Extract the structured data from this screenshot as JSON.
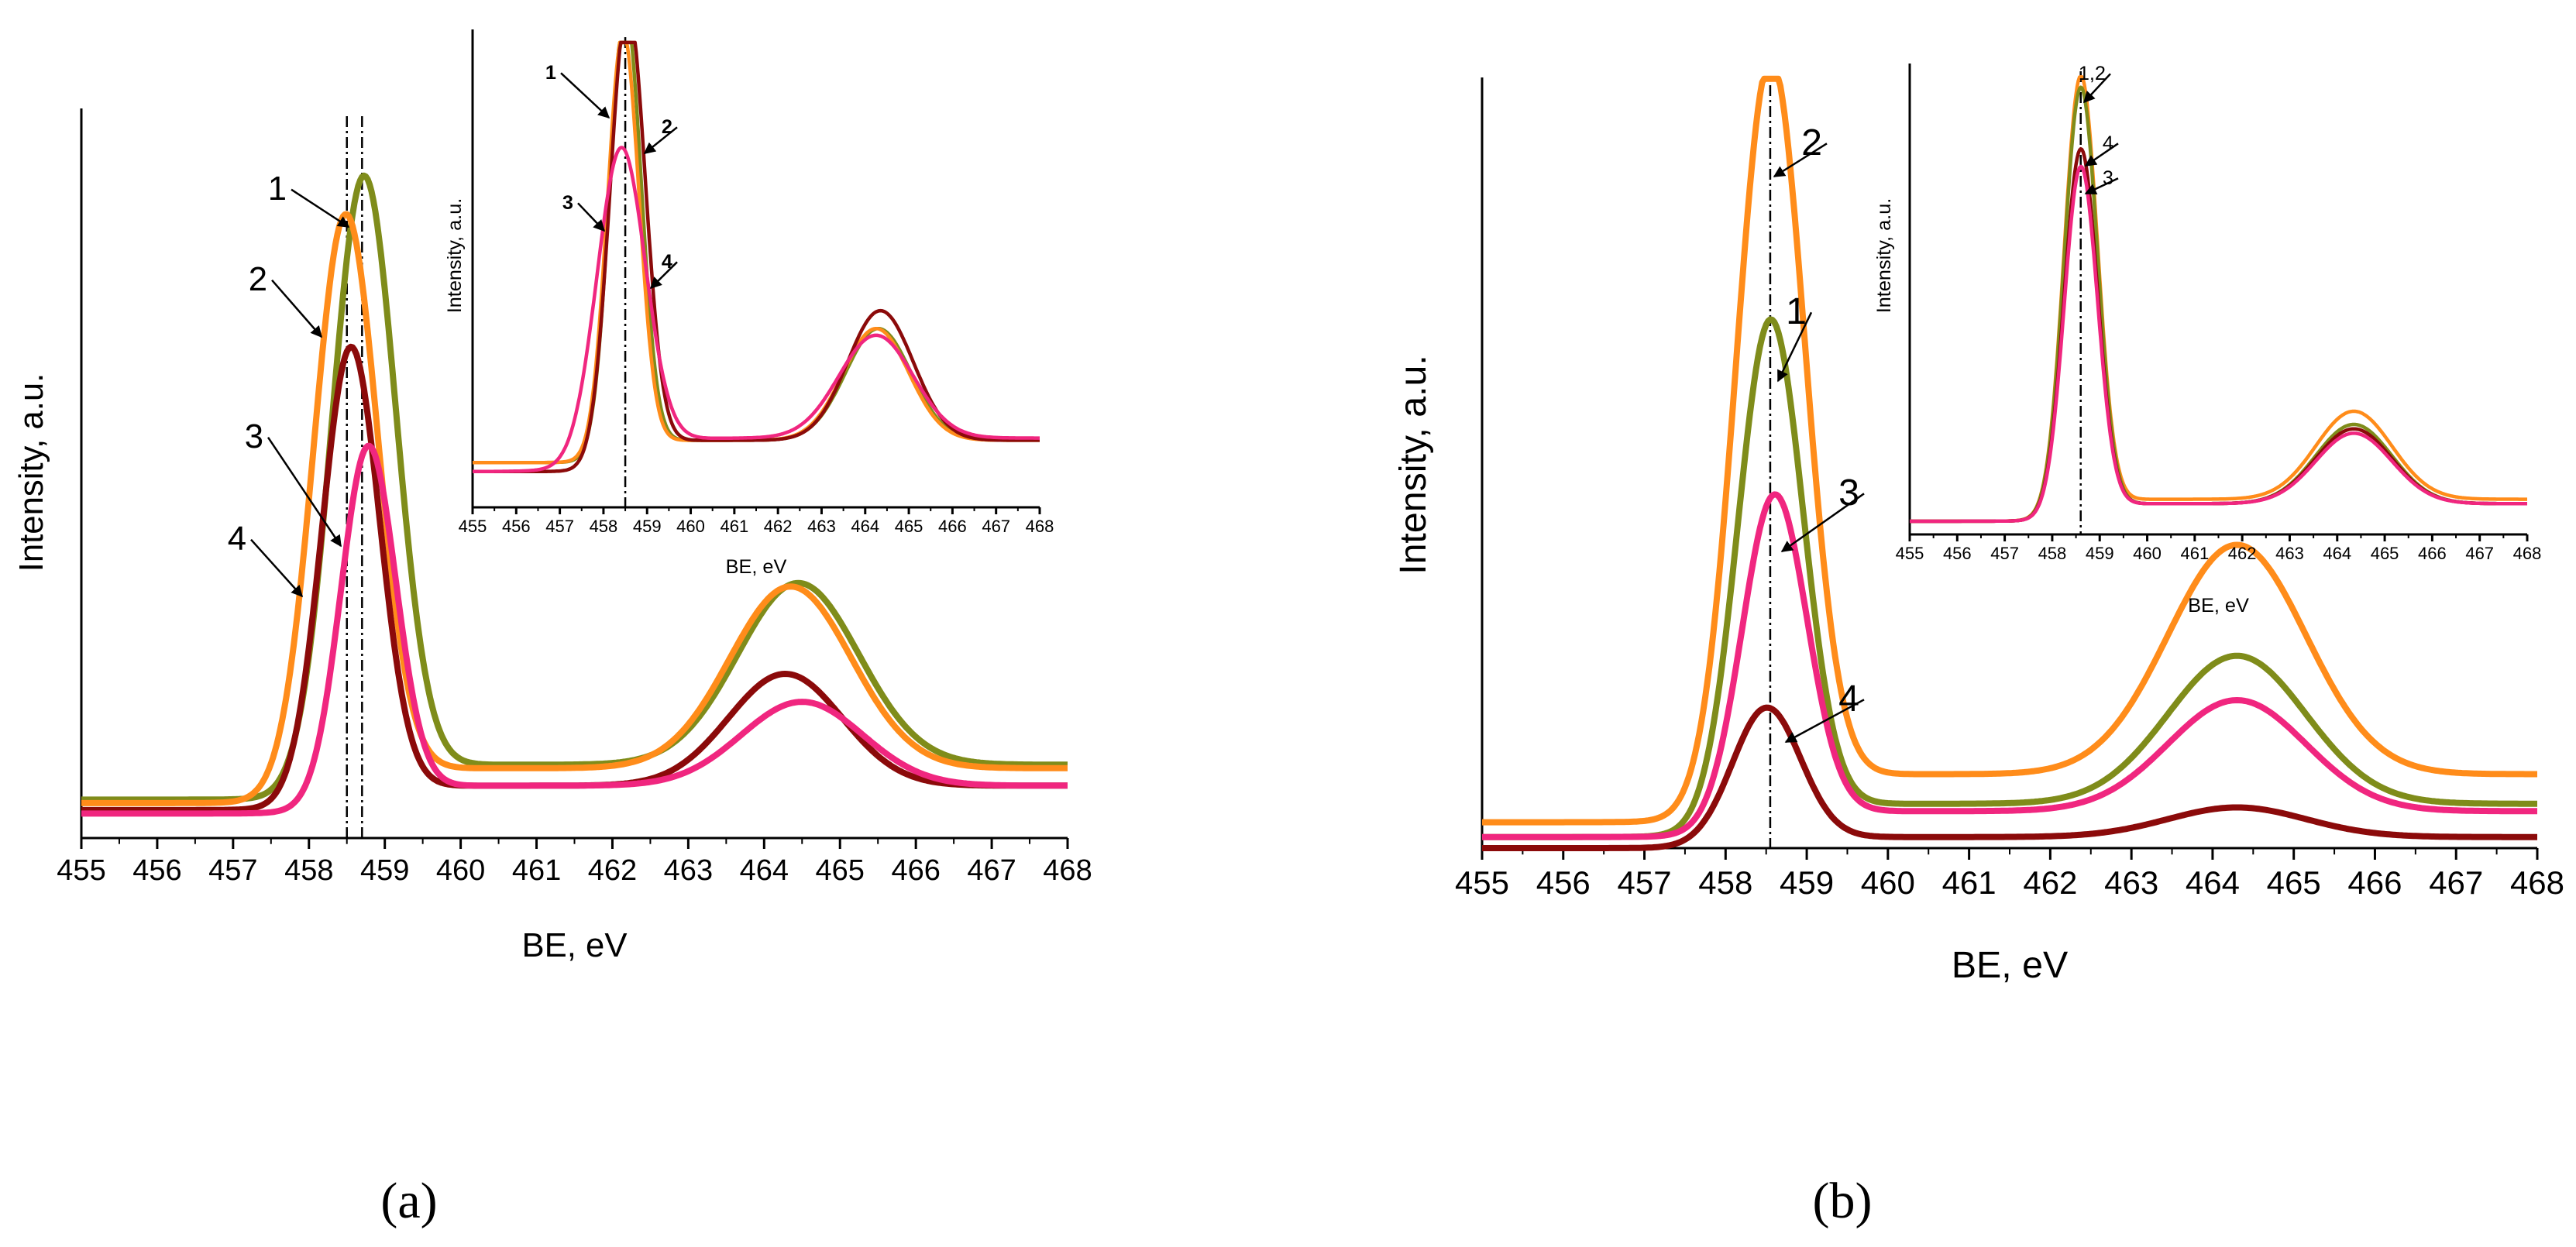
{
  "figure": {
    "panels": [
      {
        "label": "(a)",
        "main": {
          "type": "line",
          "xlabel": "BE, eV",
          "ylabel": "Intensity, a.u.",
          "xlim": [
            455,
            468
          ],
          "ylim": [
            0,
            1
          ],
          "ticks": [
            "455",
            "456",
            "457",
            "458",
            "459",
            "460",
            "461",
            "462",
            "463",
            "464",
            "465",
            "466",
            "467",
            "468"
          ],
          "reference_lines": [
            458.5,
            458.7
          ],
          "series": [
            {
              "name": "1",
              "color": "#7f8c1a",
              "peak": 458.72,
              "height": 0.86,
              "w1": 0.42,
              "peak2": 464.45,
              "h2": 0.26,
              "w2": 0.8,
              "baseA": 0.055,
              "baseB": 0.105,
              "step": 0.3,
              "label_text": "1"
            },
            {
              "name": "2",
              "color": "#ff8c1a",
              "peak": 458.48,
              "height": 0.81,
              "w1": 0.42,
              "peak2": 464.35,
              "h2": 0.26,
              "w2": 0.8,
              "baseA": 0.05,
              "baseB": 0.1,
              "step": 0.3,
              "label_text": "2"
            },
            {
              "name": "3",
              "color": "#8b0a0a",
              "peak": 458.55,
              "height": 0.64,
              "w1": 0.38,
              "peak2": 464.28,
              "h2": 0.16,
              "w2": 0.75,
              "baseA": 0.04,
              "baseB": 0.075,
              "step": 0.3,
              "label_text": "3"
            },
            {
              "name": "4",
              "color": "#f0267f",
              "peak": 458.78,
              "height": 0.5,
              "w1": 0.36,
              "peak2": 464.5,
              "h2": 0.12,
              "w2": 0.8,
              "baseA": 0.035,
              "baseB": 0.075,
              "step": 0.3,
              "label_text": "4"
            }
          ]
        },
        "inset": {
          "type": "line",
          "xlabel": "BE, eV",
          "ylabel": "Intensity, a.u.",
          "xlim": [
            455,
            468
          ],
          "ylim": [
            0,
            1
          ],
          "ticks": [
            "455",
            "456",
            "457",
            "458",
            "459",
            "460",
            "461",
            "462",
            "463",
            "464",
            "465",
            "466",
            "467",
            "468"
          ],
          "reference_lines": [
            458.5
          ],
          "series": [
            {
              "name": "1",
              "color": "#7f8c1a",
              "peak": 458.5,
              "height": 0.98,
              "w1": 0.36,
              "peak2": 464.3,
              "h2": 0.25,
              "w2": 0.75,
              "baseA": 0.1,
              "baseB": 0.15,
              "step": 0.3,
              "label_text": "1"
            },
            {
              "name": "2",
              "color": "#ff8c1a",
              "peak": 458.45,
              "height": 0.93,
              "w1": 0.36,
              "peak2": 464.25,
              "h2": 0.25,
              "w2": 0.75,
              "baseA": 0.1,
              "baseB": 0.15,
              "step": 0.3,
              "label_text": "2"
            },
            {
              "name": "3",
              "color": "#8b0a0a",
              "peak": 458.55,
              "height": 1.0,
              "w1": 0.4,
              "peak2": 464.35,
              "h2": 0.29,
              "w2": 0.75,
              "baseA": 0.08,
              "baseB": 0.15,
              "step": 0.3,
              "label_text": "3"
            },
            {
              "name": "4",
              "color": "#f0267f",
              "peak": 458.4,
              "height": 0.68,
              "w1": 0.55,
              "peak2": 464.25,
              "h2": 0.23,
              "w2": 0.85,
              "baseA": 0.08,
              "baseB": 0.155,
              "step": 0.5,
              "label_text": "4"
            }
          ]
        }
      },
      {
        "label": "(b)",
        "main": {
          "type": "line",
          "xlabel": "BE, eV",
          "ylabel": "Intensity, a.u.",
          "xlim": [
            455,
            468
          ],
          "ylim": [
            0,
            1
          ],
          "ticks": [
            "455",
            "456",
            "457",
            "458",
            "459",
            "460",
            "461",
            "462",
            "463",
            "464",
            "465",
            "466",
            "467",
            "468"
          ],
          "reference_lines": [
            458.55
          ],
          "series": [
            {
              "name": "2",
              "color": "#ff8c1a",
              "peak": 458.55,
              "height": 0.99,
              "w1": 0.42,
              "peak2": 464.3,
              "h2": 0.31,
              "w2": 0.85,
              "baseA": 0.035,
              "baseB": 0.1,
              "step": 0.3,
              "label_text": "2"
            },
            {
              "name": "1",
              "color": "#7f8c1a",
              "peak": 458.55,
              "height": 0.67,
              "w1": 0.4,
              "peak2": 464.3,
              "h2": 0.2,
              "w2": 0.85,
              "baseA": 0.015,
              "baseB": 0.06,
              "step": 0.3,
              "label_text": "1"
            },
            {
              "name": "3",
              "color": "#f0267f",
              "peak": 458.6,
              "height": 0.44,
              "w1": 0.4,
              "peak2": 464.3,
              "h2": 0.15,
              "w2": 0.85,
              "baseA": 0.015,
              "baseB": 0.05,
              "step": 0.3,
              "label_text": "3"
            },
            {
              "name": "4",
              "color": "#8b0a0a",
              "peak": 458.5,
              "height": 0.18,
              "w1": 0.42,
              "peak2": 464.3,
              "h2": 0.04,
              "w2": 0.85,
              "baseA": 0.0,
              "baseB": 0.015,
              "step": 0.3,
              "label_text": "4"
            }
          ]
        },
        "inset": {
          "type": "line",
          "xlabel": "BE, eV",
          "ylabel": "Intensity, a.u.",
          "xlim": [
            455,
            468
          ],
          "ylim": [
            0,
            1
          ],
          "ticks": [
            "455",
            "456",
            "457",
            "458",
            "459",
            "460",
            "461",
            "462",
            "463",
            "464",
            "465",
            "466",
            "467",
            "468"
          ],
          "reference_lines": [
            458.6
          ],
          "series": [
            {
              "name": "1,2",
              "color": "#ff8c1a",
              "peak": 458.6,
              "height": 0.98,
              "w1": 0.35,
              "peak2": 464.35,
              "h2": 0.2,
              "w2": 0.8,
              "baseA": 0.03,
              "baseB": 0.08,
              "step": 0.3,
              "label_text": "1,2"
            },
            {
              "name": "1",
              "color": "#7f8c1a",
              "peak": 458.6,
              "height": 0.96,
              "w1": 0.35,
              "peak2": 464.35,
              "h2": 0.18,
              "w2": 0.8,
              "baseA": 0.03,
              "baseB": 0.07,
              "step": 0.3,
              "label_text": ""
            },
            {
              "name": "4",
              "color": "#8b0a0a",
              "peak": 458.6,
              "height": 0.82,
              "w1": 0.35,
              "peak2": 464.35,
              "h2": 0.17,
              "w2": 0.8,
              "baseA": 0.03,
              "baseB": 0.07,
              "step": 0.3,
              "label_text": "4"
            },
            {
              "name": "3",
              "color": "#f0267f",
              "peak": 458.6,
              "height": 0.78,
              "w1": 0.35,
              "peak2": 464.35,
              "h2": 0.16,
              "w2": 0.8,
              "baseA": 0.03,
              "baseB": 0.07,
              "step": 0.3,
              "label_text": "3"
            }
          ]
        }
      }
    ]
  },
  "chart_data": [
    {
      "type": "line",
      "title": "(a)",
      "xlabel": "BE, eV",
      "ylabel": "Intensity, a.u.",
      "xlim": [
        455,
        468
      ],
      "legend": "curve numbers annotated with arrows",
      "series": [
        {
          "name": "1",
          "peak_BE": 458.72,
          "rel_height": 0.86,
          "second_peak_BE": 464.45
        },
        {
          "name": "2",
          "peak_BE": 458.48,
          "rel_height": 0.81,
          "second_peak_BE": 464.35
        },
        {
          "name": "3",
          "peak_BE": 458.55,
          "rel_height": 0.64,
          "second_peak_BE": 464.28
        },
        {
          "name": "4",
          "peak_BE": 458.78,
          "rel_height": 0.5,
          "second_peak_BE": 464.5
        }
      ]
    },
    {
      "type": "line",
      "title": "(a) inset",
      "xlabel": "BE, eV",
      "ylabel": "Intensity, a.u.",
      "xlim": [
        455,
        468
      ],
      "series": [
        {
          "name": "1",
          "peak_BE": 458.5,
          "rel_height": 0.98
        },
        {
          "name": "2",
          "peak_BE": 458.45,
          "rel_height": 0.93
        },
        {
          "name": "3",
          "peak_BE": 458.55,
          "rel_height": 1.0
        },
        {
          "name": "4",
          "peak_BE": 458.4,
          "rel_height": 0.68
        }
      ]
    },
    {
      "type": "line",
      "title": "(b)",
      "xlabel": "BE, eV",
      "ylabel": "Intensity, a.u.",
      "xlim": [
        455,
        468
      ],
      "series": [
        {
          "name": "2",
          "peak_BE": 458.55,
          "rel_height": 0.99,
          "second_peak_BE": 464.3
        },
        {
          "name": "1",
          "peak_BE": 458.55,
          "rel_height": 0.67,
          "second_peak_BE": 464.3
        },
        {
          "name": "3",
          "peak_BE": 458.6,
          "rel_height": 0.44,
          "second_peak_BE": 464.3
        },
        {
          "name": "4",
          "peak_BE": 458.5,
          "rel_height": 0.18,
          "second_peak_BE": 464.3
        }
      ]
    },
    {
      "type": "line",
      "title": "(b) inset",
      "xlabel": "BE, eV",
      "ylabel": "Intensity, a.u.",
      "xlim": [
        455,
        468
      ],
      "series": [
        {
          "name": "1,2",
          "peak_BE": 458.6,
          "rel_height": 0.98
        },
        {
          "name": "4",
          "peak_BE": 458.6,
          "rel_height": 0.82
        },
        {
          "name": "3",
          "peak_BE": 458.6,
          "rel_height": 0.78
        }
      ]
    }
  ]
}
